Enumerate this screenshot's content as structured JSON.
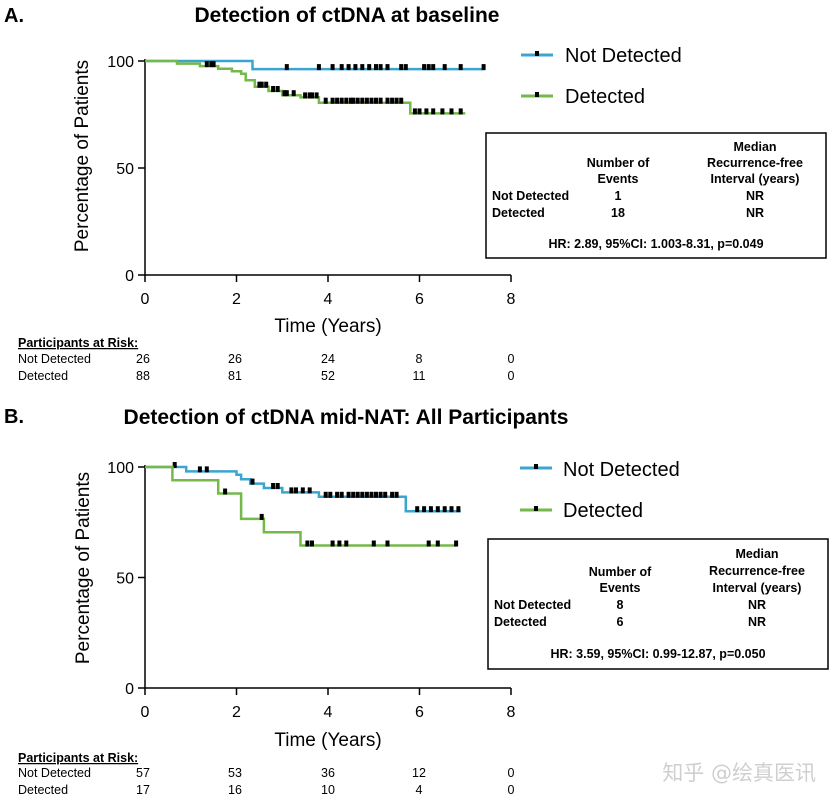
{
  "watermark": "知乎 @绘真医讯",
  "colors": {
    "not_detected": "#3ba5d1",
    "detected": "#74b94a",
    "censor": "#000000",
    "axis": "#000000"
  },
  "chart_data": [
    {
      "type": "line",
      "panel": "A.",
      "title": "Detection of ctDNA at baseline",
      "xlabel": "Time (Years)",
      "ylabel": "Percentage of Patients",
      "xlim": [
        0,
        8
      ],
      "ylim": [
        0,
        100
      ],
      "xticks": [
        "0",
        "2",
        "4",
        "6",
        "8"
      ],
      "yticks": [
        "0",
        "50",
        "100"
      ],
      "legend": [
        "Not Detected",
        "Detected"
      ],
      "series": [
        {
          "name": "Not Detected",
          "color": "#3ba5d1",
          "steps": [
            [
              0,
              100
            ],
            [
              2.35,
              96.2
            ],
            [
              7.4,
              96.2
            ]
          ],
          "censor_x": [
            3.1,
            3.8,
            4.1,
            4.3,
            4.45,
            4.6,
            4.75,
            4.9,
            5.05,
            5.15,
            5.3,
            5.6,
            5.7,
            6.1,
            6.2,
            6.3,
            6.55,
            6.9,
            7.4
          ]
        },
        {
          "name": "Detected",
          "color": "#74b94a",
          "steps": [
            [
              0,
              100
            ],
            [
              0.7,
              98.8
            ],
            [
              1.2,
              97.6
            ],
            [
              1.6,
              96.4
            ],
            [
              1.9,
              95.2
            ],
            [
              2.1,
              94
            ],
            [
              2.2,
              91
            ],
            [
              2.4,
              88
            ],
            [
              2.7,
              86
            ],
            [
              3.0,
              84
            ],
            [
              3.4,
              83
            ],
            [
              3.8,
              80.5
            ],
            [
              5.8,
              75.5
            ],
            [
              7.0,
              75.5
            ]
          ],
          "censor_x": [
            1.35,
            1.45,
            1.5,
            2.5,
            2.55,
            2.65,
            2.8,
            2.9,
            3.05,
            3.1,
            3.25,
            3.5,
            3.6,
            3.65,
            3.75,
            3.95,
            4.1,
            4.2,
            4.3,
            4.4,
            4.5,
            4.55,
            4.65,
            4.75,
            4.85,
            4.95,
            5.05,
            5.15,
            5.3,
            5.4,
            5.5,
            5.6,
            5.9,
            6.0,
            6.15,
            6.3,
            6.5,
            6.7,
            6.9
          ]
        }
      ],
      "table": {
        "headers": [
          "Number of\nEvents",
          "Median\nRecurrence-free\nInterval (years)"
        ],
        "rows": [
          [
            "Not Detected",
            "1",
            "NR"
          ],
          [
            "Detected",
            "18",
            "NR"
          ]
        ],
        "hr": "HR: 2.89, 95%CI: 1.003-8.31, p=0.049"
      },
      "risk": {
        "header": "Participants at Risk:",
        "rows": [
          {
            "label": "Not Detected",
            "values": [
              "26",
              "26",
              "24",
              "8",
              "0"
            ]
          },
          {
            "label": "Detected",
            "values": [
              "88",
              "81",
              "52",
              "11",
              "0"
            ]
          }
        ]
      }
    },
    {
      "type": "line",
      "panel": "B.",
      "title": "Detection of ctDNA mid-NAT: All Participants",
      "xlabel": "Time (Years)",
      "ylabel": "Percentage of Patients",
      "xlim": [
        0,
        8
      ],
      "ylim": [
        0,
        100
      ],
      "xticks": [
        "0",
        "2",
        "4",
        "6",
        "8"
      ],
      "yticks": [
        "0",
        "50",
        "100"
      ],
      "legend": [
        "Not Detected",
        "Detected"
      ],
      "series": [
        {
          "name": "Not Detected",
          "color": "#3ba5d1",
          "steps": [
            [
              0,
              100
            ],
            [
              0.9,
              98
            ],
            [
              2.0,
              96.5
            ],
            [
              2.1,
              94.5
            ],
            [
              2.3,
              92.5
            ],
            [
              2.6,
              90.5
            ],
            [
              3.0,
              88.5
            ],
            [
              3.8,
              86.5
            ],
            [
              5.7,
              80
            ],
            [
              6.9,
              80
            ]
          ],
          "censor_x": [
            0.65,
            1.2,
            1.35,
            2.35,
            2.8,
            2.9,
            3.2,
            3.3,
            3.45,
            3.6,
            3.95,
            4.05,
            4.2,
            4.3,
            4.45,
            4.55,
            4.65,
            4.75,
            4.85,
            4.95,
            5.05,
            5.15,
            5.25,
            5.4,
            5.5,
            5.95,
            6.1,
            6.25,
            6.4,
            6.55,
            6.7,
            6.85
          ]
        },
        {
          "name": "Detected",
          "color": "#74b94a",
          "steps": [
            [
              0,
              100
            ],
            [
              0.6,
              94
            ],
            [
              1.6,
              88
            ],
            [
              2.1,
              76.5
            ],
            [
              2.6,
              70.5
            ],
            [
              3.4,
              64.5
            ],
            [
              6.8,
              64.5
            ]
          ],
          "censor_x": [
            1.75,
            2.55,
            3.55,
            3.65,
            4.1,
            4.25,
            4.4,
            5.0,
            5.3,
            6.2,
            6.4,
            6.8
          ]
        }
      ],
      "table": {
        "headers": [
          "Number of\nEvents",
          "Median\nRecurrence-free\nInterval (years)"
        ],
        "rows": [
          [
            "Not Detected",
            "8",
            "NR"
          ],
          [
            "Detected",
            "6",
            "NR"
          ]
        ],
        "hr": "HR: 3.59, 95%CI: 0.99-12.87, p=0.050"
      },
      "risk": {
        "header": "Participants at Risk:",
        "rows": [
          {
            "label": "Not Detected",
            "values": [
              "57",
              "53",
              "36",
              "12",
              "0"
            ]
          },
          {
            "label": "Detected",
            "values": [
              "17",
              "16",
              "10",
              "4",
              "0"
            ]
          }
        ]
      }
    }
  ]
}
